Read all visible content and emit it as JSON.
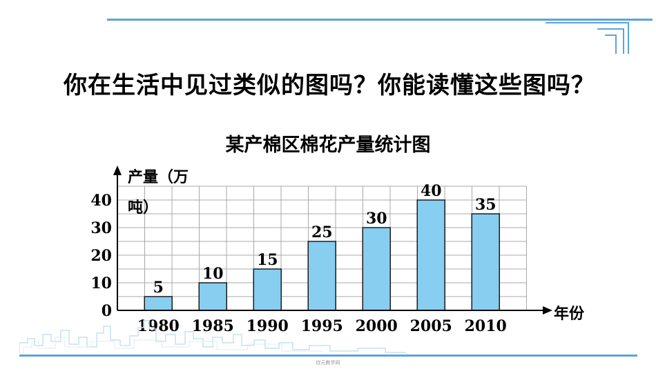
{
  "question": "你在生活中见过类似的图吗？你能读懂这些图吗？",
  "chart_data": {
    "type": "bar",
    "title": "某产棉区棉花产量统计图",
    "ylabel": "产量（万吨）",
    "xlabel": "年份",
    "categories": [
      "1980",
      "1985",
      "1990",
      "1995",
      "2000",
      "2005",
      "2010"
    ],
    "values": [
      5,
      10,
      15,
      25,
      30,
      40,
      35
    ],
    "yticks": [
      0,
      10,
      20,
      30,
      40
    ],
    "ylim": [
      0,
      45
    ],
    "grid": true,
    "bar_color": "#87cef0",
    "data_labels": true
  },
  "footer": "欣元教学网"
}
